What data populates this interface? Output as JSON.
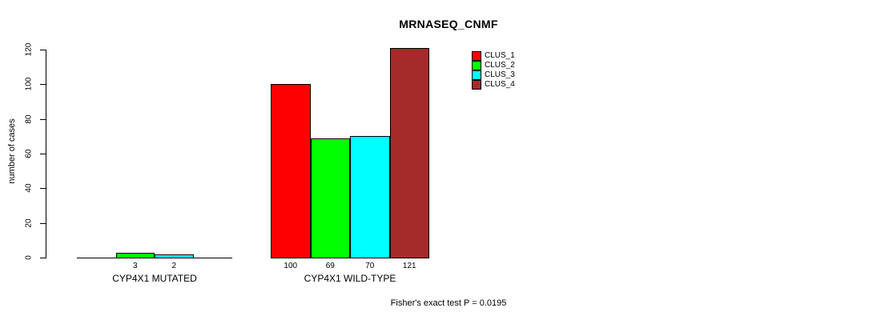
{
  "chart_data": {
    "type": "bar",
    "title": "MRNASEQ_CNMF",
    "ylabel": "number of cases",
    "xlabel": "",
    "ylim": [
      0,
      120
    ],
    "yticks": [
      0,
      20,
      40,
      60,
      80,
      100,
      120
    ],
    "grid": false,
    "categories": [
      "CYP4X1 MUTATED",
      "CYP4X1 WILD-TYPE"
    ],
    "series": [
      {
        "name": "CLUS_1",
        "color": "#FF0000",
        "values": [
          0,
          100
        ]
      },
      {
        "name": "CLUS_2",
        "color": "#00FF00",
        "values": [
          3,
          69
        ]
      },
      {
        "name": "CLUS_3",
        "color": "#00FFFF",
        "values": [
          2,
          70
        ]
      },
      {
        "name": "CLUS_4",
        "color": "#A52A2A",
        "values": [
          0,
          121
        ]
      }
    ],
    "bar_value_labels_visible": [
      [
        "3",
        "2"
      ],
      [
        "100",
        "69",
        "70",
        "121"
      ]
    ],
    "legend": {
      "position": "top-right-inside",
      "entries": [
        "CLUS_1",
        "CLUS_2",
        "CLUS_3",
        "CLUS_4"
      ]
    },
    "annotation": "Fisher's exact test P = 0.0195",
    "axis_color": "#000000",
    "background_color": "#FFFFFF"
  }
}
